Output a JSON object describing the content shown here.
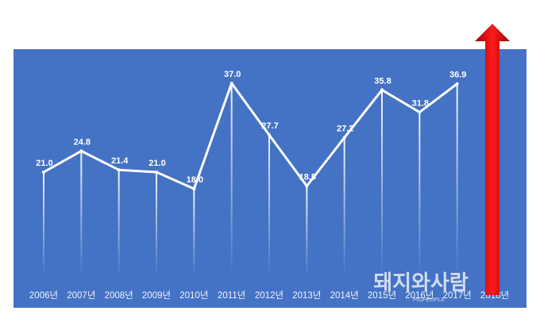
{
  "chart_data": {
    "type": "line",
    "categories": [
      "2006년",
      "2007년",
      "2008년",
      "2009년",
      "2010년",
      "2011년",
      "2012년",
      "2013년",
      "2014년",
      "2015년",
      "2016년",
      "2017년",
      "2018년"
    ],
    "values": [
      21.0,
      24.8,
      21.4,
      21.0,
      18.0,
      37.0,
      27.7,
      18.5,
      27.2,
      35.8,
      31.8,
      36.9,
      null
    ],
    "value_labels": [
      "21.0",
      "24.8",
      "21.4",
      "21.0",
      "18.0",
      "37.0",
      "27.7",
      "18.5",
      "27.2",
      "35.8",
      "31.8",
      "36.9",
      null
    ],
    "color": "#ffffff",
    "watermark": "돼지와사람",
    "watermark_sub": "PIGPEOPLE"
  }
}
